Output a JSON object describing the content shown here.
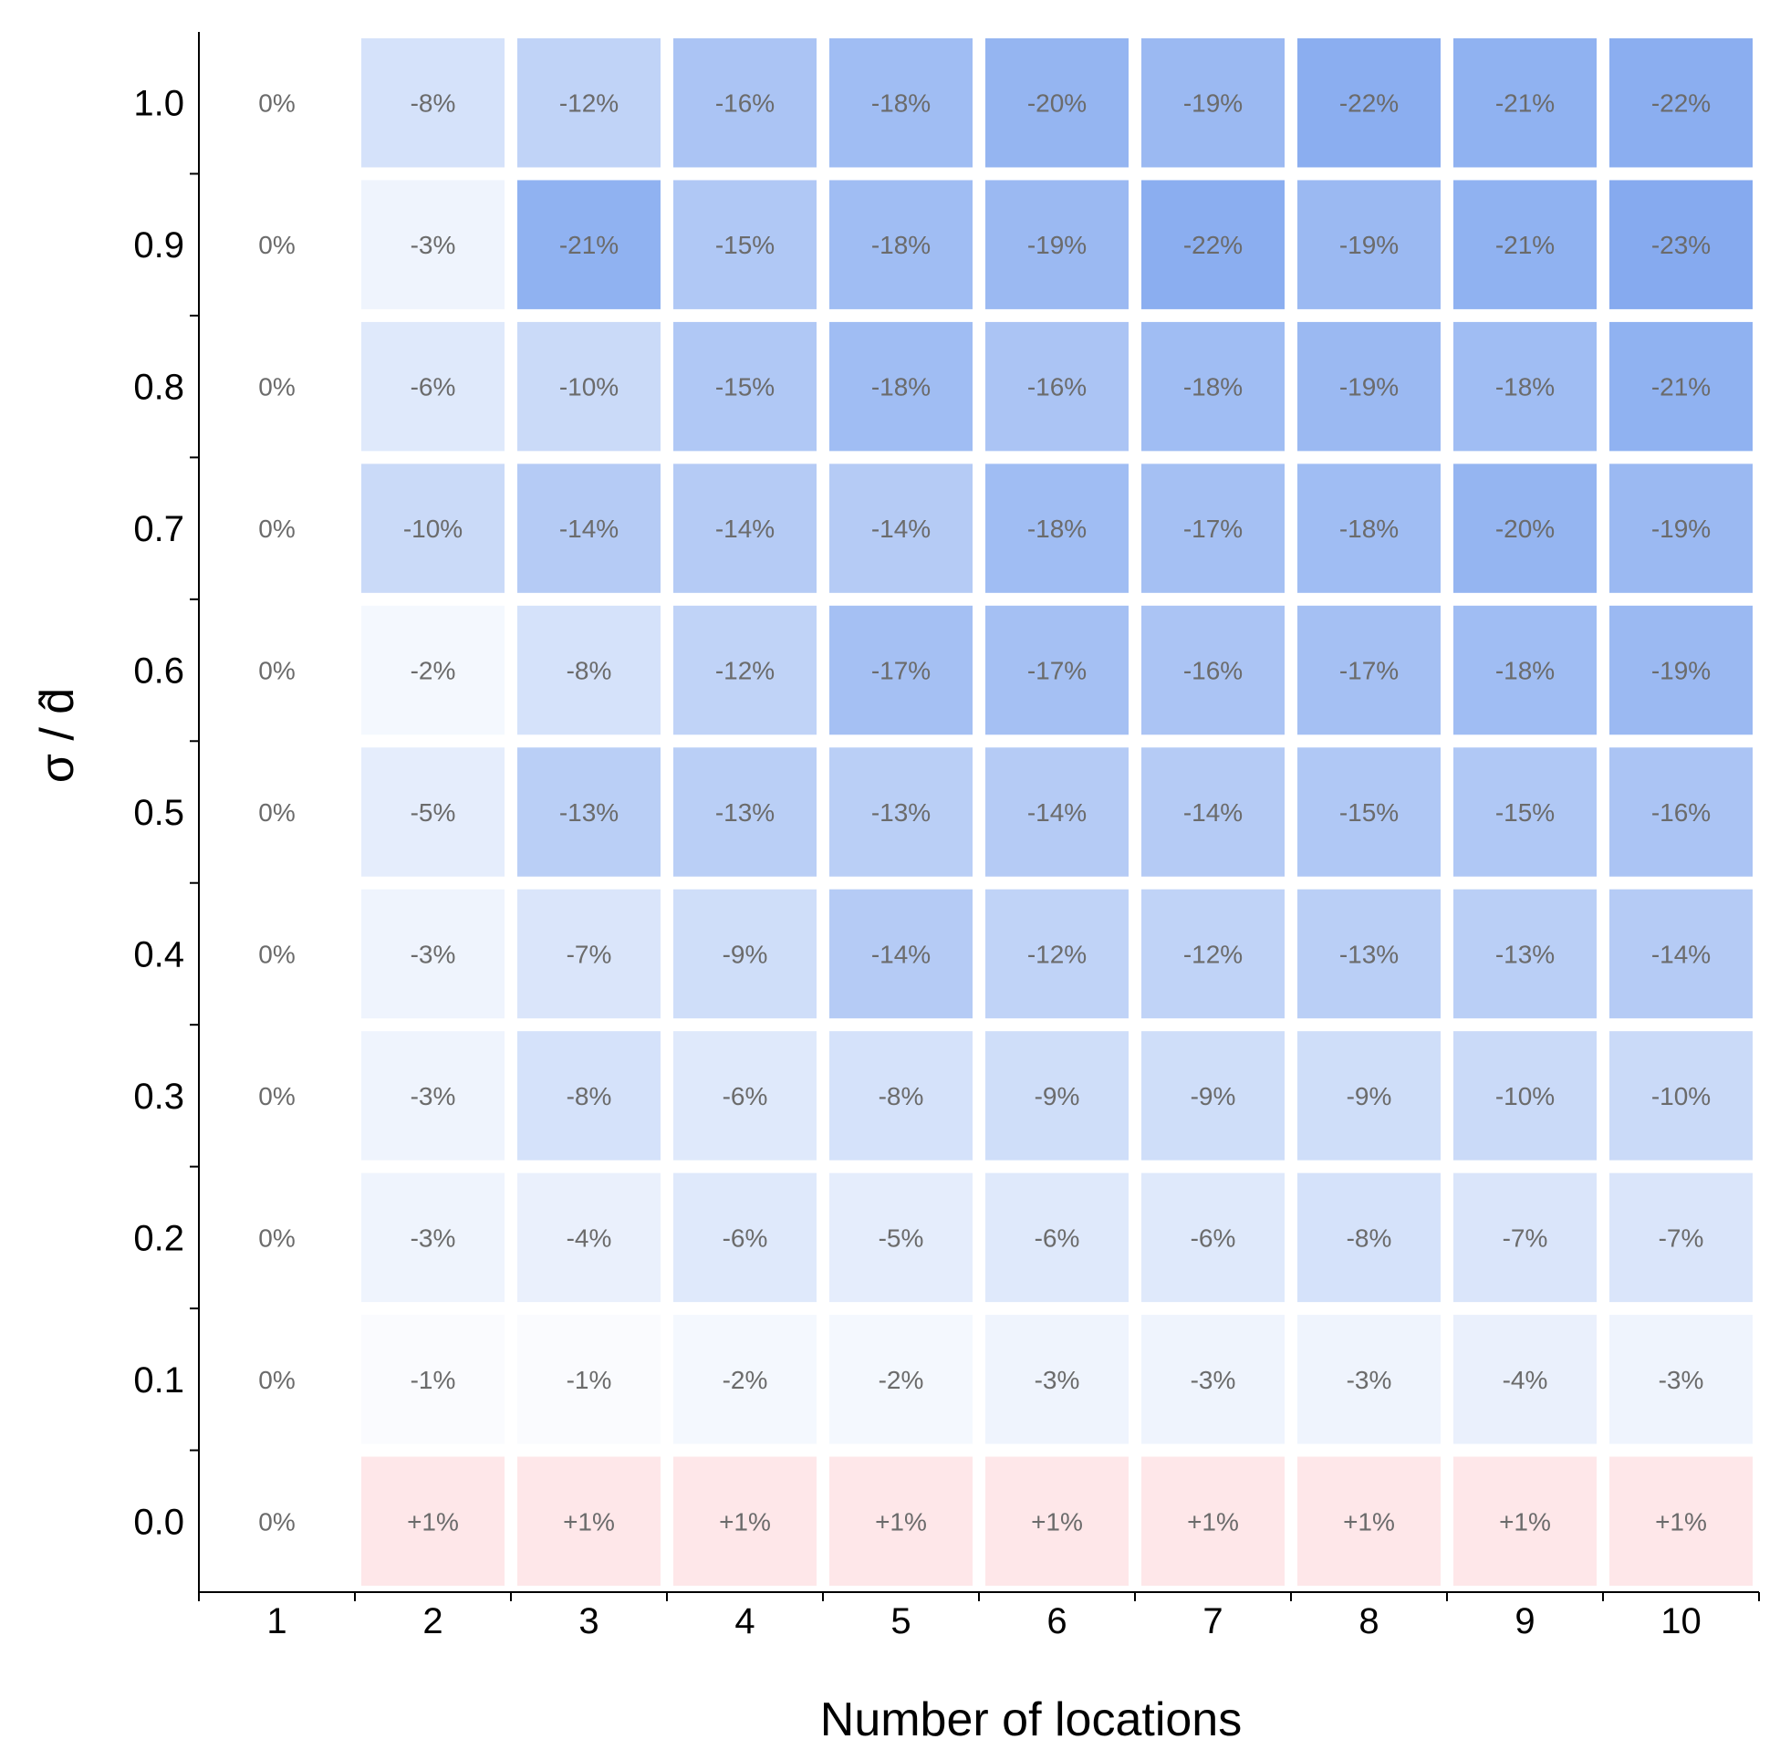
{
  "chart_data": {
    "type": "heatmap",
    "title": "",
    "xlabel": "Number of locations",
    "ylabel": "σ / d̂",
    "x_categories": [
      "1",
      "2",
      "3",
      "4",
      "5",
      "6",
      "7",
      "8",
      "9",
      "10"
    ],
    "y_categories": [
      "1.0",
      "0.9",
      "0.8",
      "0.7",
      "0.6",
      "0.5",
      "0.4",
      "0.3",
      "0.2",
      "0.1",
      "0.0"
    ],
    "values": [
      [
        0,
        -8,
        -12,
        -16,
        -18,
        -20,
        -19,
        -22,
        -21,
        -22
      ],
      [
        0,
        -3,
        -21,
        -15,
        -18,
        -19,
        -22,
        -19,
        -21,
        -23
      ],
      [
        0,
        -6,
        -10,
        -15,
        -18,
        -16,
        -18,
        -19,
        -18,
        -21
      ],
      [
        0,
        -10,
        -14,
        -14,
        -14,
        -18,
        -17,
        -18,
        -20,
        -19
      ],
      [
        0,
        -2,
        -8,
        -12,
        -17,
        -17,
        -16,
        -17,
        -18,
        -19
      ],
      [
        0,
        -5,
        -13,
        -13,
        -13,
        -14,
        -14,
        -15,
        -15,
        -16
      ],
      [
        0,
        -3,
        -7,
        -9,
        -14,
        -12,
        -12,
        -13,
        -13,
        -14
      ],
      [
        0,
        -3,
        -8,
        -6,
        -8,
        -9,
        -9,
        -9,
        -10,
        -10
      ],
      [
        0,
        -3,
        -4,
        -6,
        -5,
        -6,
        -6,
        -8,
        -7,
        -7
      ],
      [
        0,
        -1,
        -1,
        -2,
        -2,
        -3,
        -3,
        -3,
        -4,
        -3
      ],
      [
        0,
        1,
        1,
        1,
        1,
        1,
        1,
        1,
        1,
        1
      ]
    ],
    "cell_labels": [
      [
        "0%",
        "-8%",
        "-12%",
        "-16%",
        "-18%",
        "-20%",
        "-19%",
        "-22%",
        "-21%",
        "-22%"
      ],
      [
        "0%",
        "-3%",
        "-21%",
        "-15%",
        "-18%",
        "-19%",
        "-22%",
        "-19%",
        "-21%",
        "-23%"
      ],
      [
        "0%",
        "-6%",
        "-10%",
        "-15%",
        "-18%",
        "-16%",
        "-18%",
        "-19%",
        "-18%",
        "-21%"
      ],
      [
        "0%",
        "-10%",
        "-14%",
        "-14%",
        "-14%",
        "-18%",
        "-17%",
        "-18%",
        "-20%",
        "-19%"
      ],
      [
        "0%",
        "-2%",
        "-8%",
        "-12%",
        "-17%",
        "-17%",
        "-16%",
        "-17%",
        "-18%",
        "-19%"
      ],
      [
        "0%",
        "-5%",
        "-13%",
        "-13%",
        "-13%",
        "-14%",
        "-14%",
        "-15%",
        "-15%",
        "-16%"
      ],
      [
        "0%",
        "-3%",
        "-7%",
        "-9%",
        "-14%",
        "-12%",
        "-12%",
        "-13%",
        "-13%",
        "-14%"
      ],
      [
        "0%",
        "-3%",
        "-8%",
        "-6%",
        "-8%",
        "-9%",
        "-9%",
        "-9%",
        "-10%",
        "-10%"
      ],
      [
        "0%",
        "-3%",
        "-4%",
        "-6%",
        "-5%",
        "-6%",
        "-6%",
        "-8%",
        "-7%",
        "-7%"
      ],
      [
        "0%",
        "-1%",
        "-1%",
        "-2%",
        "-2%",
        "-3%",
        "-3%",
        "-3%",
        "-4%",
        "-3%"
      ],
      [
        "0%",
        "+1%",
        "+1%",
        "+1%",
        "+1%",
        "+1%",
        "+1%",
        "+1%",
        "+1%",
        "+1%"
      ]
    ],
    "color_scale": {
      "negative_color": "#7ba3ee",
      "neutral_color": "#ffffff",
      "positive_color": "#fa9ea8"
    },
    "grid": false,
    "legend": "none"
  }
}
